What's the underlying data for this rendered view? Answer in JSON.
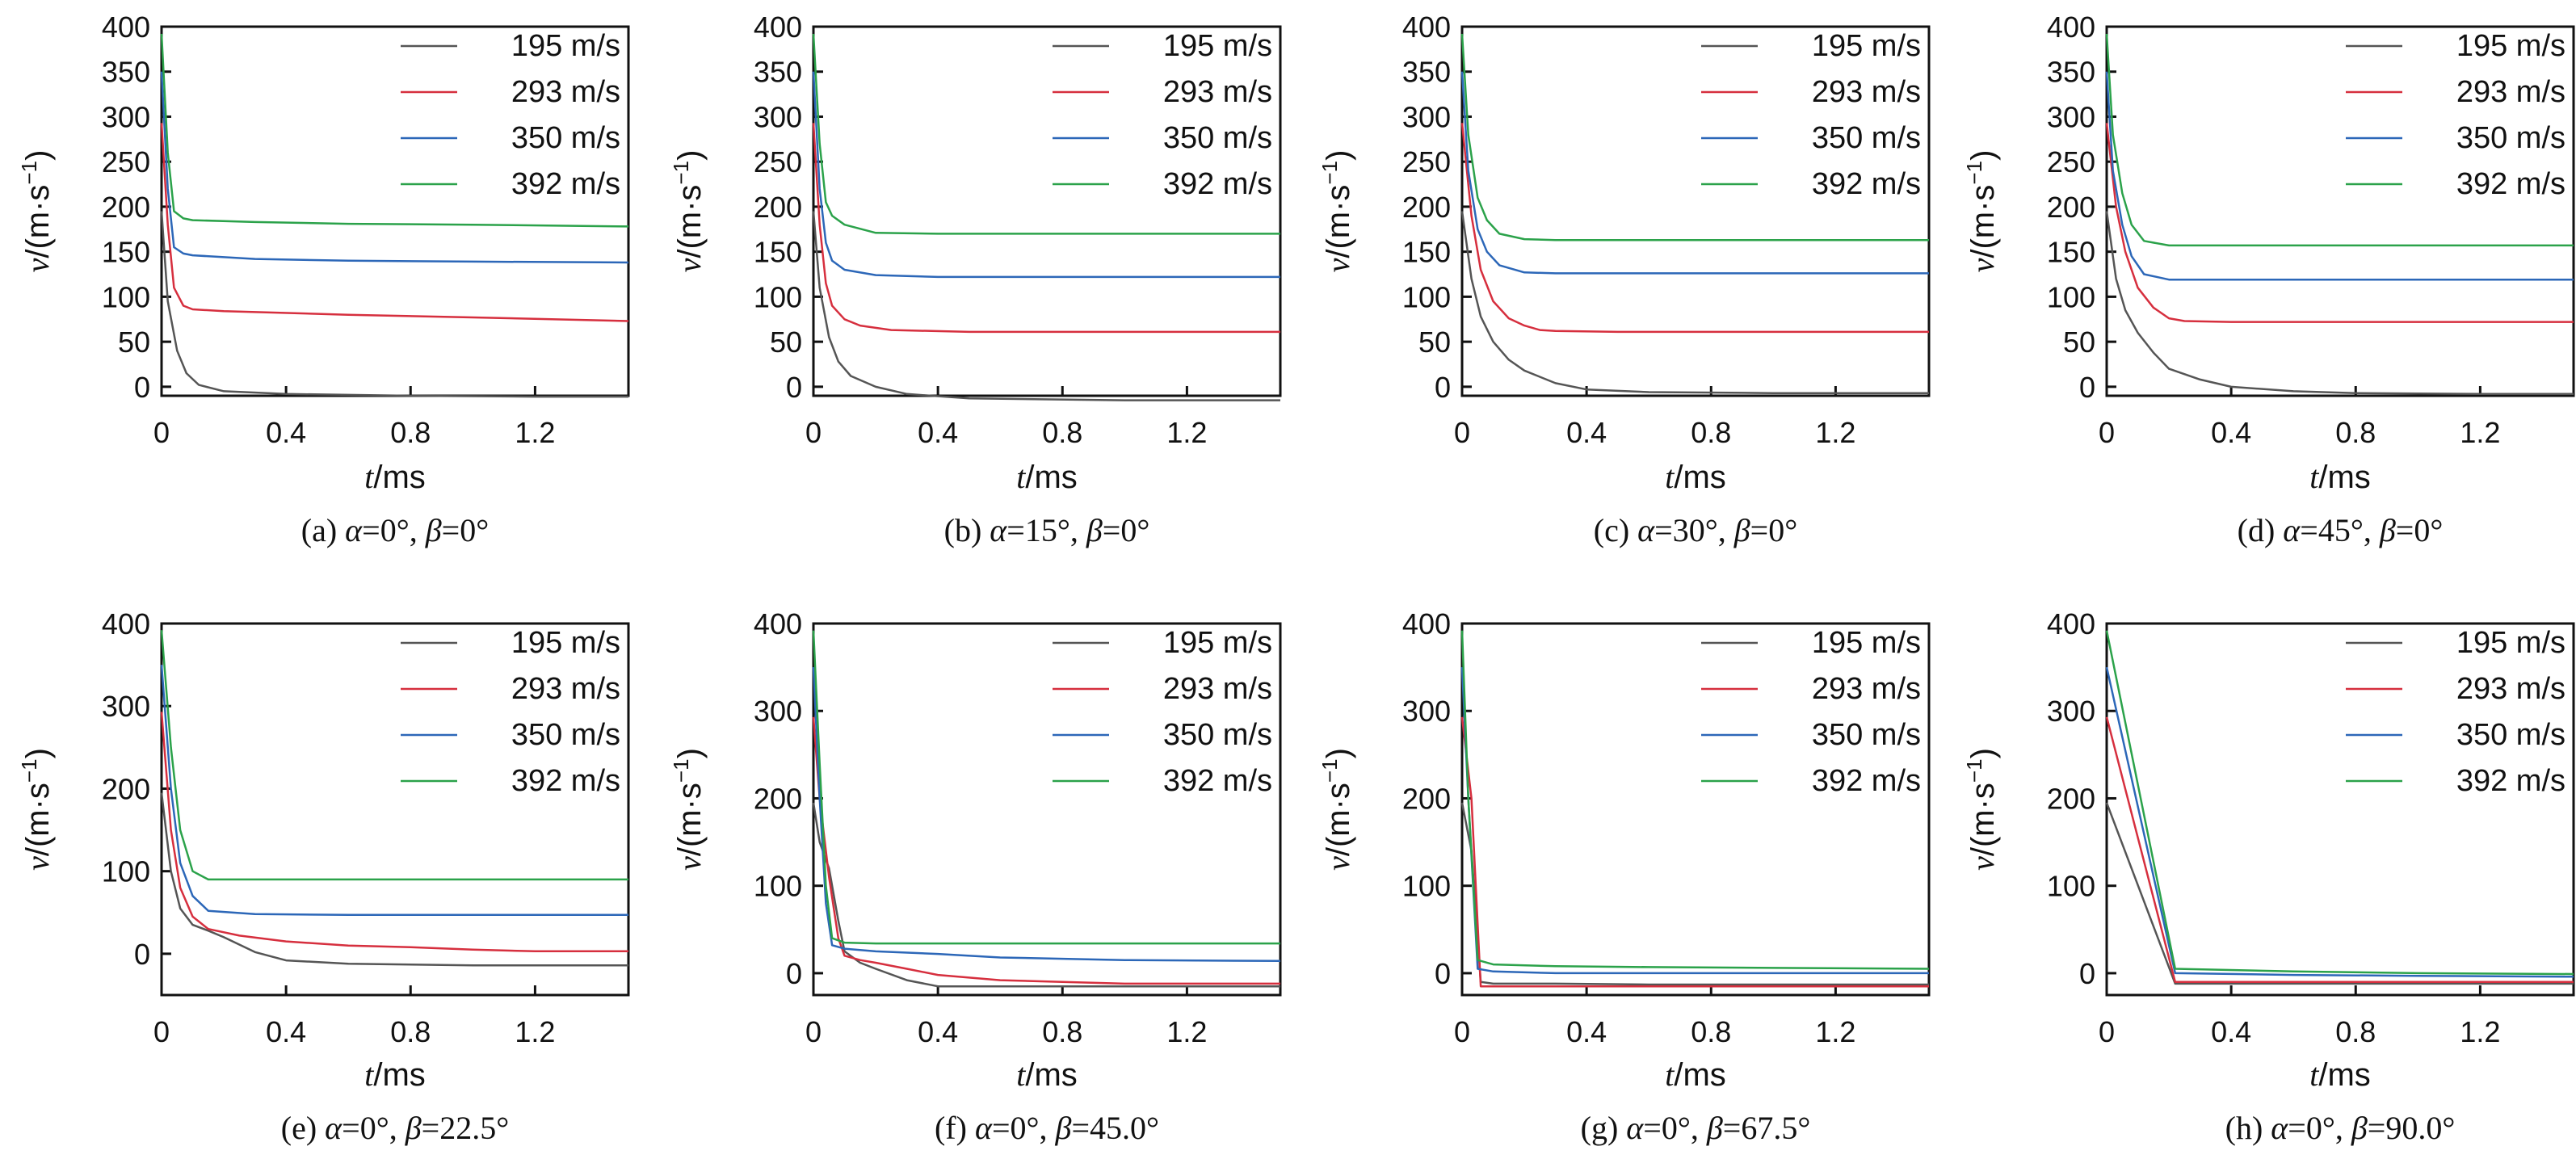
{
  "colors": {
    "195 m/s": "#555555",
    "293 m/s": "#d62f3e",
    "350 m/s": "#2c67b8",
    "392 m/s": "#2ba24a",
    "axis": "#111111"
  },
  "common": {
    "legend": [
      "195 m/s",
      "293 m/s",
      "350 m/s",
      "392 m/s"
    ],
    "xlabel_var": "t",
    "xlabel_unit": "/ms",
    "ylabel_var": "v",
    "ylabel_unit": "/(m·s",
    "ylabel_exp": "−1",
    "ylabel_close": ")",
    "alpha_sym": "α",
    "beta_sym": "β"
  },
  "chart_data": [
    {
      "type": "line",
      "id": "a",
      "caption": {
        "prefix": "(a) ",
        "alpha": "=0°",
        "beta": "=0°"
      },
      "xlim": [
        0,
        1.5
      ],
      "ylim": [
        -10,
        400
      ],
      "xticks": [
        0,
        0.4,
        0.8,
        1.2
      ],
      "xtick_labels": [
        "0",
        "0.4",
        "0.8",
        "1.2"
      ],
      "yticks": [
        0,
        50,
        100,
        150,
        200,
        250,
        300,
        350,
        400
      ],
      "series": [
        {
          "name": "195 m/s",
          "x": [
            0,
            0.02,
            0.05,
            0.08,
            0.12,
            0.2,
            0.4,
            0.8,
            1.2,
            1.5
          ],
          "y": [
            195,
            95,
            40,
            15,
            2,
            -5,
            -8,
            -10,
            -11,
            -11
          ]
        },
        {
          "name": "293 m/s",
          "x": [
            0,
            0.02,
            0.04,
            0.07,
            0.1,
            0.2,
            0.6,
            1.0,
            1.5
          ],
          "y": [
            293,
            180,
            110,
            90,
            86,
            84,
            80,
            77,
            73
          ]
        },
        {
          "name": "350 m/s",
          "x": [
            0,
            0.02,
            0.04,
            0.07,
            0.1,
            0.3,
            0.6,
            1.0,
            1.5
          ],
          "y": [
            350,
            220,
            155,
            148,
            146,
            142,
            140,
            139,
            138
          ]
        },
        {
          "name": "392 m/s",
          "x": [
            0,
            0.02,
            0.04,
            0.07,
            0.1,
            0.3,
            0.6,
            1.0,
            1.5
          ],
          "y": [
            392,
            260,
            195,
            187,
            185,
            183,
            181,
            180,
            178
          ]
        }
      ]
    },
    {
      "type": "line",
      "id": "b",
      "caption": {
        "prefix": "(b) ",
        "alpha": "=15°",
        "beta": "=0°"
      },
      "xlim": [
        0,
        1.5
      ],
      "ylim": [
        -10,
        400
      ],
      "xticks": [
        0,
        0.4,
        0.8,
        1.2
      ],
      "xtick_labels": [
        "0",
        "0.4",
        "0.8",
        "1.2"
      ],
      "yticks": [
        0,
        50,
        100,
        150,
        200,
        250,
        300,
        350,
        400
      ],
      "series": [
        {
          "name": "195 m/s",
          "x": [
            0,
            0.02,
            0.05,
            0.08,
            0.12,
            0.2,
            0.3,
            0.5,
            1.0,
            1.5
          ],
          "y": [
            195,
            110,
            55,
            28,
            12,
            0,
            -8,
            -13,
            -15,
            -15
          ]
        },
        {
          "name": "293 m/s",
          "x": [
            0,
            0.02,
            0.04,
            0.06,
            0.1,
            0.15,
            0.25,
            0.5,
            1.0,
            1.5
          ],
          "y": [
            293,
            180,
            115,
            90,
            75,
            68,
            63,
            61,
            61,
            61
          ]
        },
        {
          "name": "350 m/s",
          "x": [
            0,
            0.02,
            0.04,
            0.06,
            0.1,
            0.2,
            0.4,
            1.0,
            1.5
          ],
          "y": [
            350,
            220,
            160,
            140,
            130,
            124,
            122,
            122,
            122
          ]
        },
        {
          "name": "392 m/s",
          "x": [
            0,
            0.02,
            0.04,
            0.06,
            0.1,
            0.2,
            0.4,
            1.0,
            1.5
          ],
          "y": [
            392,
            270,
            205,
            190,
            180,
            171,
            170,
            170,
            170
          ]
        }
      ]
    },
    {
      "type": "line",
      "id": "c",
      "caption": {
        "prefix": "(c) ",
        "alpha": "=30°",
        "beta": "=0°"
      },
      "xlim": [
        0,
        1.5
      ],
      "ylim": [
        -10,
        400
      ],
      "xticks": [
        0,
        0.4,
        0.8,
        1.2
      ],
      "xtick_labels": [
        "0",
        "0.4",
        "0.8",
        "1.2"
      ],
      "yticks": [
        0,
        50,
        100,
        150,
        200,
        250,
        300,
        350,
        400
      ],
      "series": [
        {
          "name": "195 m/s",
          "x": [
            0,
            0.03,
            0.06,
            0.1,
            0.15,
            0.2,
            0.3,
            0.4,
            0.6,
            1.0,
            1.5
          ],
          "y": [
            195,
            120,
            78,
            50,
            30,
            18,
            4,
            -3,
            -6,
            -7,
            -7
          ]
        },
        {
          "name": "293 m/s",
          "x": [
            0,
            0.03,
            0.06,
            0.1,
            0.15,
            0.2,
            0.25,
            0.3,
            0.5,
            1.0,
            1.5
          ],
          "y": [
            293,
            190,
            130,
            95,
            76,
            68,
            63,
            62,
            61,
            61,
            61
          ]
        },
        {
          "name": "350 m/s",
          "x": [
            0,
            0.02,
            0.05,
            0.08,
            0.12,
            0.2,
            0.3,
            1.0,
            1.5
          ],
          "y": [
            350,
            240,
            175,
            150,
            135,
            127,
            126,
            126,
            126
          ]
        },
        {
          "name": "392 m/s",
          "x": [
            0,
            0.02,
            0.05,
            0.08,
            0.12,
            0.2,
            0.3,
            1.0,
            1.5
          ],
          "y": [
            392,
            280,
            210,
            185,
            170,
            164,
            163,
            163,
            163
          ]
        }
      ]
    },
    {
      "type": "line",
      "id": "d",
      "caption": {
        "prefix": "(d) ",
        "alpha": "=45°",
        "beta": "=0°"
      },
      "xlim": [
        0,
        1.5
      ],
      "ylim": [
        -10,
        400
      ],
      "xticks": [
        0,
        0.4,
        0.8,
        1.2
      ],
      "xtick_labels": [
        "0",
        "0.4",
        "0.8",
        "1.2"
      ],
      "yticks": [
        0,
        50,
        100,
        150,
        200,
        250,
        300,
        350,
        400
      ],
      "series": [
        {
          "name": "195 m/s",
          "x": [
            0,
            0.03,
            0.06,
            0.1,
            0.15,
            0.2,
            0.3,
            0.4,
            0.6,
            0.8,
            1.2,
            1.5
          ],
          "y": [
            195,
            120,
            85,
            60,
            38,
            20,
            8,
            0,
            -5,
            -7,
            -8,
            -8
          ]
        },
        {
          "name": "293 m/s",
          "x": [
            0,
            0.03,
            0.06,
            0.1,
            0.15,
            0.2,
            0.25,
            0.4,
            1.0,
            1.5
          ],
          "y": [
            293,
            200,
            150,
            110,
            88,
            76,
            73,
            72,
            72,
            72
          ]
        },
        {
          "name": "350 m/s",
          "x": [
            0,
            0.02,
            0.05,
            0.08,
            0.12,
            0.2,
            1.0,
            1.5
          ],
          "y": [
            350,
            240,
            180,
            145,
            125,
            119,
            119,
            119
          ]
        },
        {
          "name": "392 m/s",
          "x": [
            0,
            0.02,
            0.05,
            0.08,
            0.12,
            0.2,
            1.0,
            1.5
          ],
          "y": [
            392,
            280,
            215,
            180,
            162,
            157,
            157,
            157
          ]
        }
      ]
    },
    {
      "type": "line",
      "id": "e",
      "caption": {
        "prefix": "(e) ",
        "alpha": "=0°",
        "beta": "=22.5°"
      },
      "xlim": [
        0,
        1.5
      ],
      "ylim": [
        -50,
        400
      ],
      "xticks": [
        0,
        0.4,
        0.8,
        1.2
      ],
      "xtick_labels": [
        "0",
        "0.4",
        "0.8",
        "1.2"
      ],
      "yticks": [
        0,
        100,
        200,
        300,
        400
      ],
      "series": [
        {
          "name": "195 m/s",
          "x": [
            0,
            0.03,
            0.06,
            0.1,
            0.15,
            0.2,
            0.3,
            0.4,
            0.6,
            1.0,
            1.5
          ],
          "y": [
            195,
            100,
            55,
            35,
            28,
            20,
            2,
            -8,
            -12,
            -14,
            -14
          ]
        },
        {
          "name": "293 m/s",
          "x": [
            0,
            0.03,
            0.06,
            0.1,
            0.15,
            0.25,
            0.4,
            0.6,
            0.8,
            1.0,
            1.2,
            1.5
          ],
          "y": [
            293,
            150,
            80,
            45,
            30,
            22,
            15,
            10,
            8,
            5,
            3,
            3
          ]
        },
        {
          "name": "350 m/s",
          "x": [
            0,
            0.03,
            0.06,
            0.1,
            0.15,
            0.3,
            0.6,
            1.0,
            1.5
          ],
          "y": [
            350,
            200,
            110,
            70,
            52,
            48,
            47,
            47,
            47
          ]
        },
        {
          "name": "392 m/s",
          "x": [
            0,
            0.03,
            0.06,
            0.1,
            0.15,
            0.3,
            0.6,
            1.0,
            1.5
          ],
          "y": [
            392,
            250,
            150,
            100,
            90,
            90,
            90,
            90,
            90
          ]
        }
      ]
    },
    {
      "type": "line",
      "id": "f",
      "caption": {
        "prefix": "(f) ",
        "alpha": "=0°",
        "beta": "=45.0°"
      },
      "xlim": [
        0,
        1.5
      ],
      "ylim": [
        -25,
        400
      ],
      "xticks": [
        0,
        0.4,
        0.8,
        1.2
      ],
      "xtick_labels": [
        "0",
        "0.4",
        "0.8",
        "1.2"
      ],
      "yticks": [
        0,
        100,
        200,
        300,
        400
      ],
      "series": [
        {
          "name": "195 m/s",
          "x": [
            0,
            0.02,
            0.05,
            0.08,
            0.1,
            0.15,
            0.2,
            0.3,
            0.4,
            0.6,
            1.0,
            1.5
          ],
          "y": [
            195,
            150,
            120,
            60,
            25,
            12,
            5,
            -8,
            -15,
            -15,
            -15,
            -15
          ]
        },
        {
          "name": "293 m/s",
          "x": [
            0,
            0.02,
            0.05,
            0.08,
            0.1,
            0.15,
            0.2,
            0.3,
            0.4,
            0.6,
            1.0,
            1.5
          ],
          "y": [
            293,
            200,
            110,
            40,
            20,
            15,
            12,
            5,
            -2,
            -8,
            -12,
            -12
          ]
        },
        {
          "name": "350 m/s",
          "x": [
            0,
            0.02,
            0.04,
            0.06,
            0.1,
            0.2,
            0.4,
            0.6,
            1.0,
            1.5
          ],
          "y": [
            350,
            200,
            80,
            32,
            28,
            25,
            22,
            18,
            15,
            14
          ]
        },
        {
          "name": "392 m/s",
          "x": [
            0,
            0.02,
            0.04,
            0.06,
            0.1,
            0.2,
            0.6,
            1.0,
            1.5
          ],
          "y": [
            392,
            240,
            100,
            40,
            35,
            34,
            34,
            34,
            34
          ]
        }
      ]
    },
    {
      "type": "line",
      "id": "g",
      "caption": {
        "prefix": "(g) ",
        "alpha": "=0°",
        "beta": "=67.5°"
      },
      "xlim": [
        0,
        1.5
      ],
      "ylim": [
        -25,
        400
      ],
      "xticks": [
        0,
        0.4,
        0.8,
        1.2
      ],
      "xtick_labels": [
        "0",
        "0.4",
        "0.8",
        "1.2"
      ],
      "yticks": [
        0,
        100,
        200,
        300,
        400
      ],
      "series": [
        {
          "name": "195 m/s",
          "x": [
            0,
            0.03,
            0.06,
            0.1,
            0.3,
            0.6,
            1.0,
            1.5
          ],
          "y": [
            195,
            140,
            -10,
            -12,
            -12,
            -13,
            -13,
            -13
          ]
        },
        {
          "name": "293 m/s",
          "x": [
            0,
            0.03,
            0.06,
            0.1,
            0.3,
            0.6,
            1.0,
            1.5
          ],
          "y": [
            293,
            200,
            -15,
            -15,
            -15,
            -15,
            -15,
            -15
          ]
        },
        {
          "name": "350 m/s",
          "x": [
            0,
            0.02,
            0.05,
            0.1,
            0.3,
            0.6,
            1.0,
            1.5
          ],
          "y": [
            350,
            200,
            5,
            2,
            0,
            0,
            0,
            0
          ]
        },
        {
          "name": "392 m/s",
          "x": [
            0,
            0.02,
            0.05,
            0.1,
            0.3,
            0.6,
            1.0,
            1.5
          ],
          "y": [
            392,
            200,
            15,
            10,
            8,
            7,
            6,
            5
          ]
        }
      ]
    },
    {
      "type": "line",
      "id": "h",
      "caption": {
        "prefix": "(h) ",
        "alpha": "=0°",
        "beta": "=90.0°"
      },
      "xlim": [
        0,
        1.5
      ],
      "ylim": [
        -25,
        400
      ],
      "xticks": [
        0,
        0.4,
        0.8,
        1.2
      ],
      "xtick_labels": [
        "0",
        "0.4",
        "0.8",
        "1.2"
      ],
      "yticks": [
        0,
        100,
        200,
        300,
        400
      ],
      "series": [
        {
          "name": "195 m/s",
          "x": [
            0,
            0.22,
            0.6,
            1.0,
            1.5
          ],
          "y": [
            195,
            -12,
            -12,
            -12,
            -12
          ]
        },
        {
          "name": "293 m/s",
          "x": [
            0,
            0.22,
            0.6,
            1.0,
            1.5
          ],
          "y": [
            293,
            -10,
            -10,
            -10,
            -10
          ]
        },
        {
          "name": "350 m/s",
          "x": [
            0,
            0.22,
            0.6,
            1.0,
            1.5
          ],
          "y": [
            350,
            0,
            -2,
            -3,
            -4
          ]
        },
        {
          "name": "392 m/s",
          "x": [
            0,
            0.22,
            0.6,
            1.0,
            1.5
          ],
          "y": [
            392,
            5,
            2,
            0,
            -1
          ]
        }
      ]
    }
  ]
}
